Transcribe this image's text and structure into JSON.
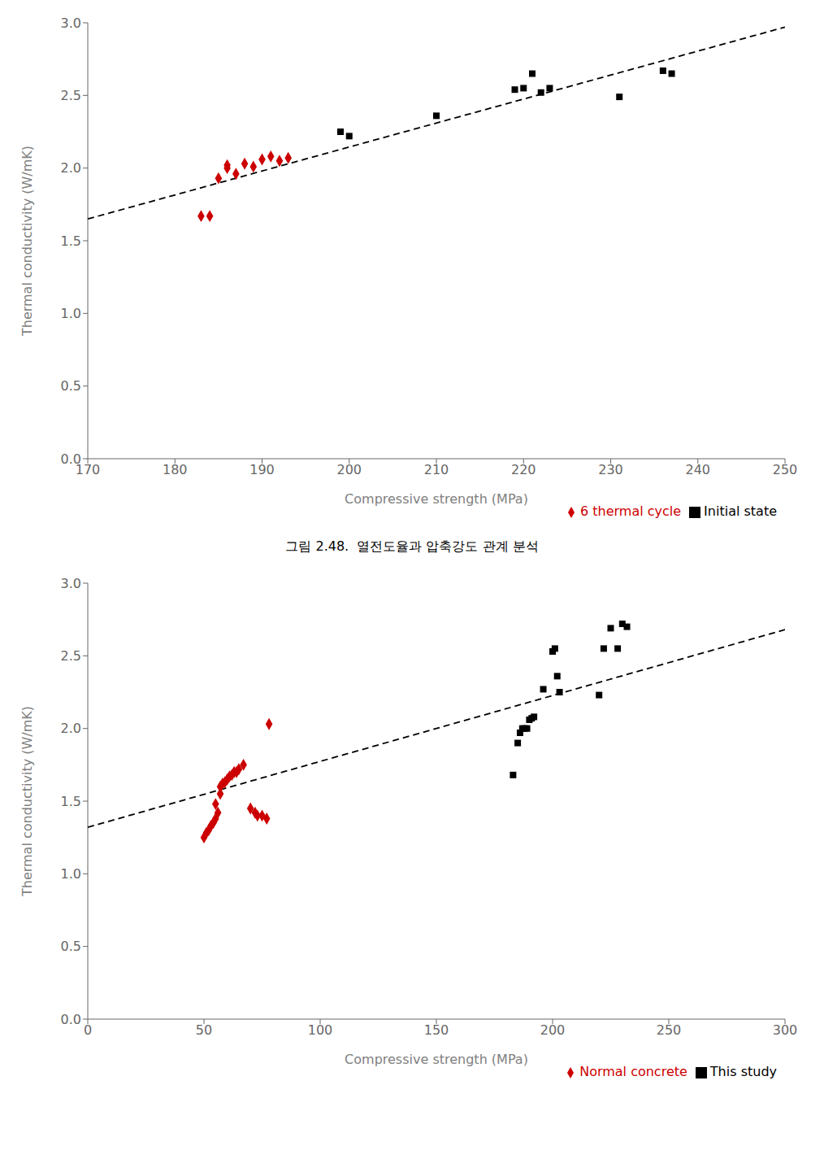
{
  "chart_data": [
    {
      "type": "scatter",
      "x_label": "Compressive strength (MPa)",
      "y_label": "Thermal conductivity (W/mK)",
      "xlim": [
        170,
        250
      ],
      "ylim": [
        0.0,
        3.0
      ],
      "xticks": [
        170,
        180,
        190,
        200,
        210,
        220,
        230,
        240,
        250
      ],
      "yticks": [
        {
          "value": 0,
          "label": "0.0"
        },
        0.5,
        {
          "value": 1,
          "label": "1.0"
        },
        1.5,
        {
          "value": 2,
          "label": "2.0"
        },
        2.5,
        {
          "value": 3,
          "label": "3.0"
        }
      ],
      "grid": false,
      "legend": "lower right",
      "annotations": [
        "그림 2.48.  열전도율과 압축강도 관계 분석"
      ],
      "series": [
        {
          "type": "line",
          "line_style": "dashed",
          "color": "#000000",
          "x": [
            170,
            250
          ],
          "values": [
            1.65,
            2.97
          ]
        },
        {
          "type": "scatter",
          "name": "Initial state",
          "marker": "square",
          "color": "#000000",
          "x": [
            199,
            200,
            210,
            219,
            220,
            221,
            222,
            223,
            231,
            236,
            237
          ],
          "values": [
            2.25,
            2.22,
            2.36,
            2.54,
            2.55,
            2.65,
            2.52,
            2.55,
            2.49,
            2.67,
            2.65
          ]
        },
        {
          "type": "scatter",
          "name": "6 thermal cycle",
          "marker": "diamond",
          "color": "#cc0000",
          "x": [
            183,
            184,
            185,
            186,
            186,
            187,
            188,
            189,
            190,
            191,
            192,
            193
          ],
          "values": [
            1.67,
            1.67,
            1.93,
            2.02,
            2.0,
            1.96,
            2.03,
            2.01,
            2.06,
            2.08,
            2.05,
            2.07
          ]
        }
      ]
    },
    {
      "type": "scatter",
      "x_label": "Compressive strength (MPa)",
      "y_label": "Thermal conductivity (W/mK)",
      "xlim": [
        0,
        300
      ],
      "ylim": [
        0.0,
        3.0
      ],
      "xticks": [
        0,
        50,
        100,
        150,
        200,
        250,
        300
      ],
      "yticks": [
        {
          "value": 0,
          "label": "0.0"
        },
        0.5,
        {
          "value": 1,
          "label": "1.0"
        },
        1.5,
        {
          "value": 2,
          "label": "2.0"
        },
        2.5,
        {
          "value": 3,
          "label": "3.0"
        }
      ],
      "grid": false,
      "legend": "lower right",
      "series": [
        {
          "type": "line",
          "line_style": "dashed",
          "color": "#000000",
          "x": [
            0,
            300
          ],
          "values": [
            1.32,
            2.68
          ]
        },
        {
          "type": "scatter",
          "name": "This study",
          "marker": "square",
          "color": "#000000",
          "x": [
            183,
            185,
            186,
            187,
            188,
            189,
            190,
            191,
            192,
            196,
            200,
            201,
            202,
            203,
            220,
            222,
            225,
            228,
            230,
            232
          ],
          "values": [
            1.68,
            1.9,
            1.97,
            2.0,
            2.0,
            2.0,
            2.06,
            2.07,
            2.08,
            2.27,
            2.53,
            2.55,
            2.36,
            2.25,
            2.23,
            2.55,
            2.69,
            2.55,
            2.72,
            2.7
          ]
        },
        {
          "type": "scatter",
          "name": "Normal concrete",
          "marker": "diamond",
          "color": "#cc0000",
          "x": [
            50,
            51,
            52,
            53,
            54,
            55,
            55,
            56,
            57,
            57,
            58,
            59,
            60,
            61,
            62,
            63,
            64,
            65,
            67,
            70,
            72,
            73,
            75,
            77,
            78
          ],
          "values": [
            1.25,
            1.28,
            1.3,
            1.33,
            1.35,
            1.38,
            1.48,
            1.42,
            1.55,
            1.6,
            1.62,
            1.63,
            1.65,
            1.67,
            1.68,
            1.7,
            1.7,
            1.72,
            1.75,
            1.45,
            1.42,
            1.4,
            1.4,
            1.38,
            2.03
          ]
        }
      ]
    }
  ]
}
